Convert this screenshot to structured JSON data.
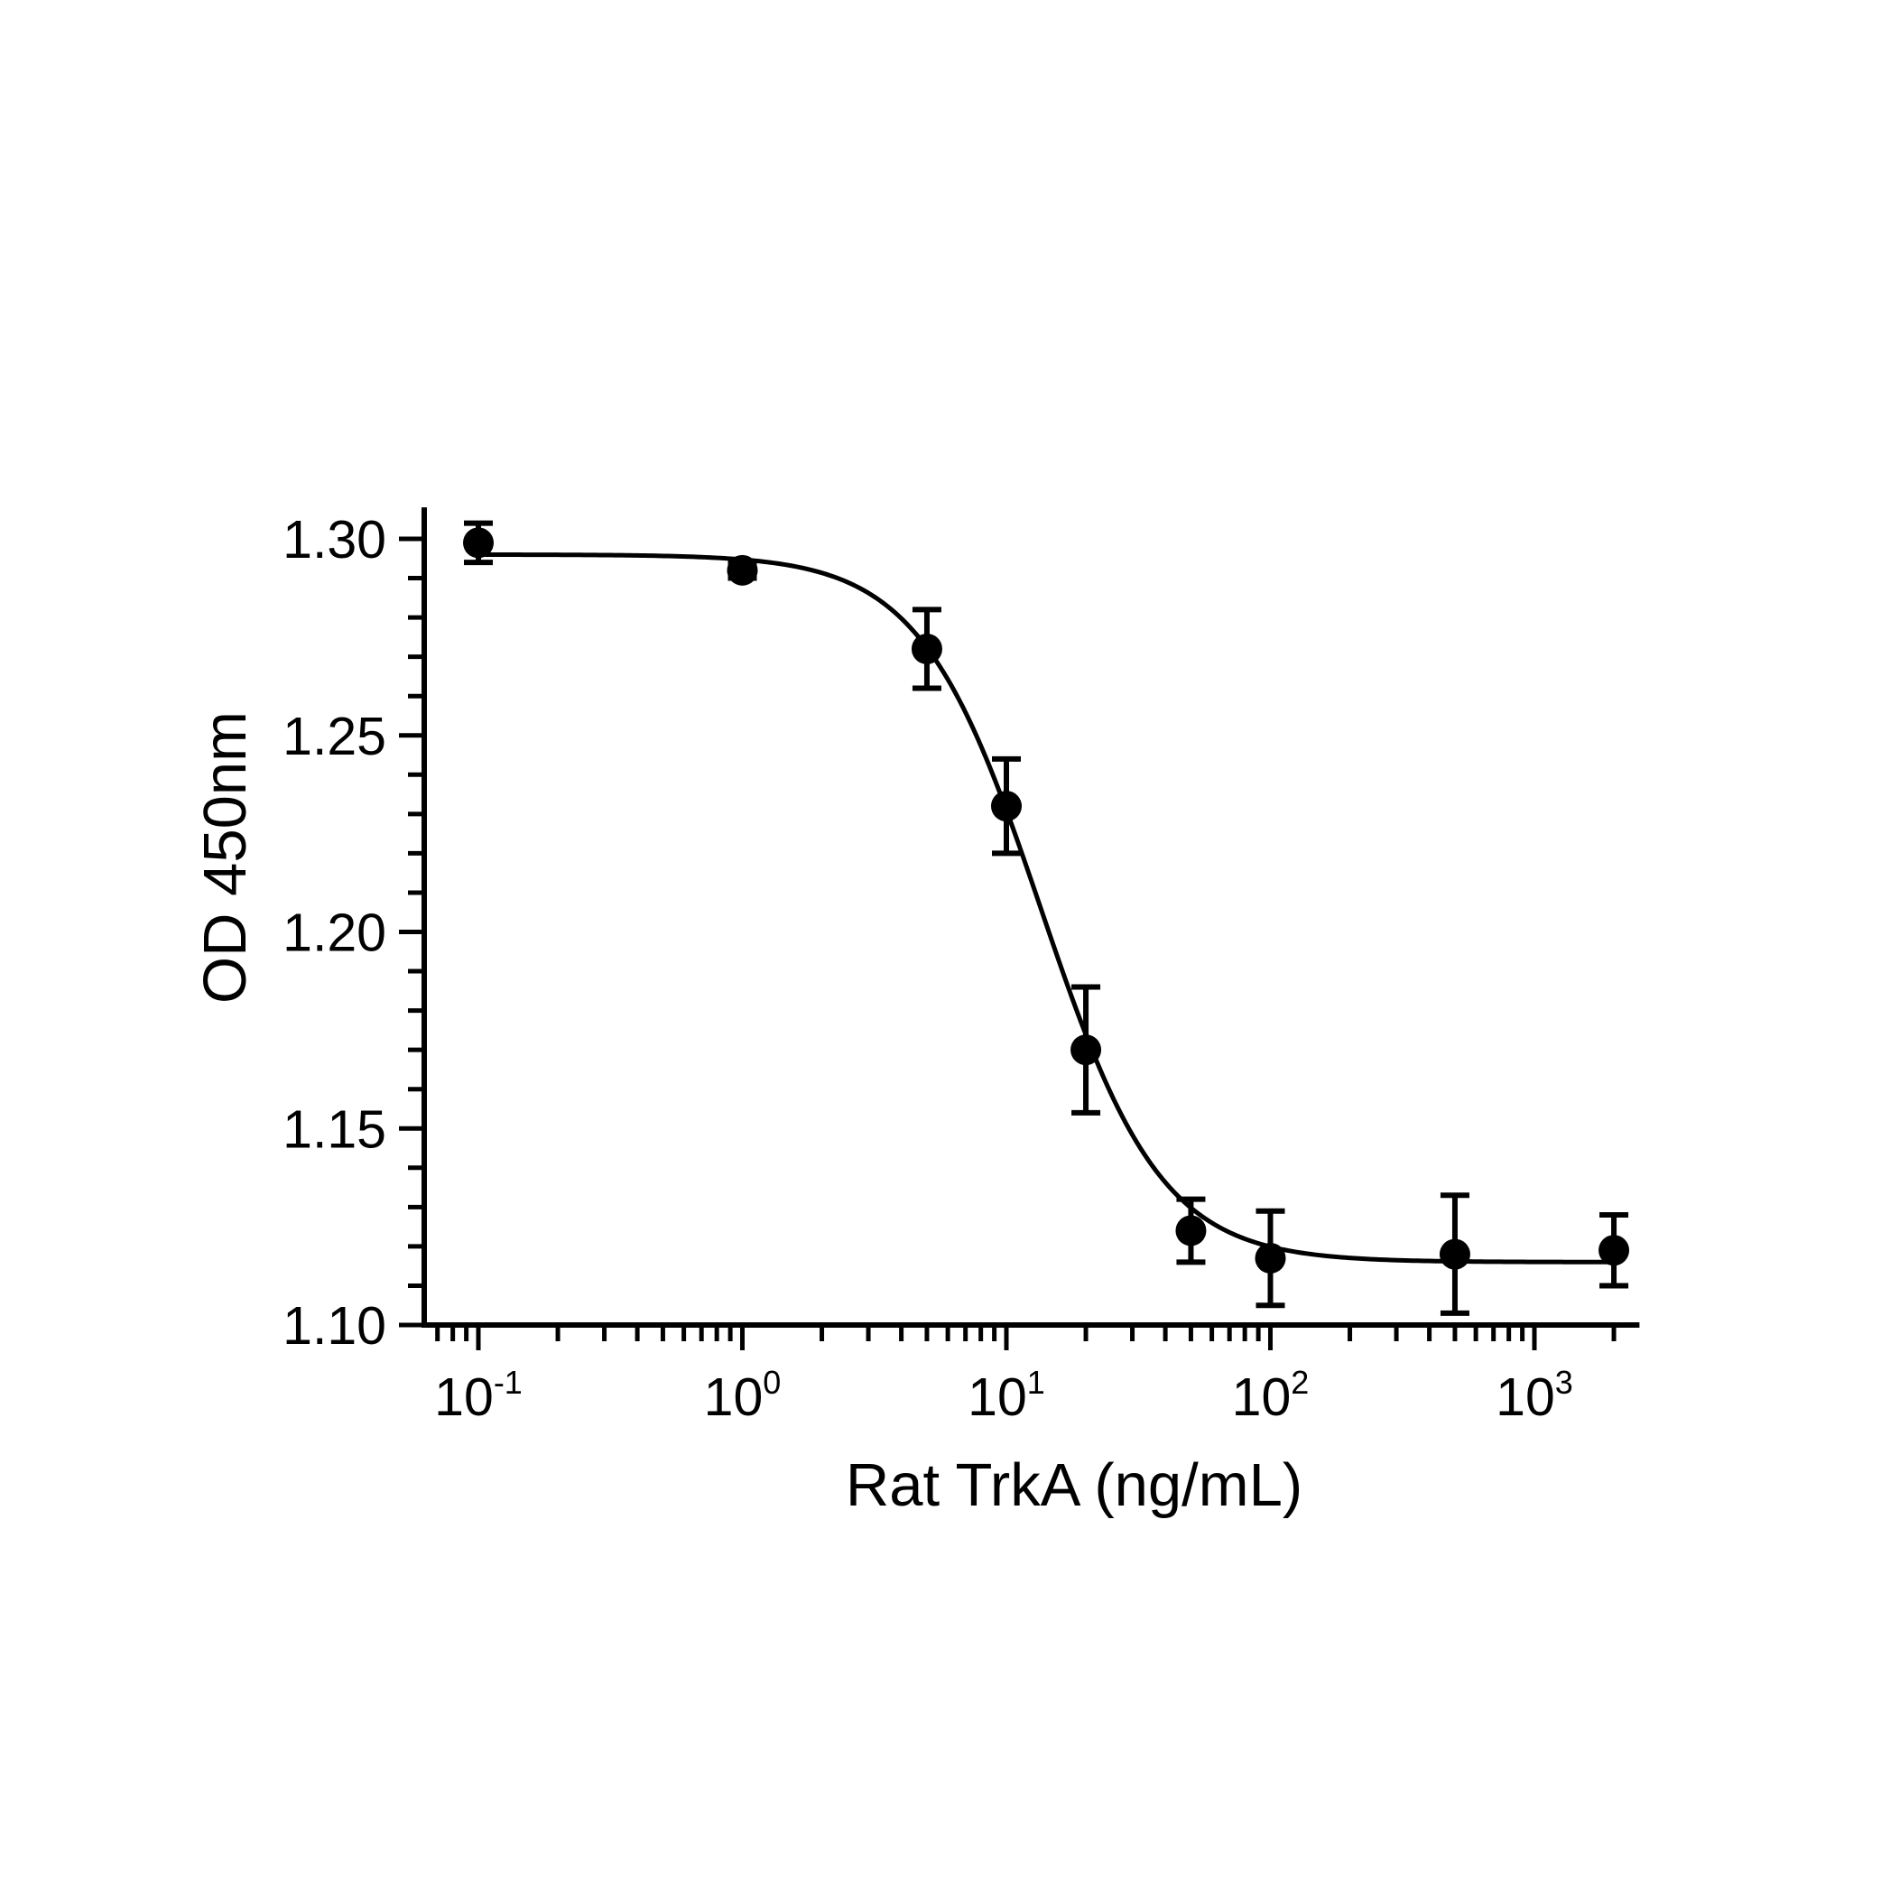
{
  "chart_data": {
    "type": "scatter",
    "xlabel": "Rat TrkA (ng/mL)",
    "ylabel": "OD 450nm",
    "x_scale": "log",
    "xlim": [
      0.065,
      2500
    ],
    "ylim": [
      1.1,
      1.308
    ],
    "y_ticks": [
      "1.10",
      "1.15",
      "1.20",
      "1.25",
      "1.30"
    ],
    "x_ticks": [
      {
        "base": "10",
        "exp": "-1"
      },
      {
        "base": "10",
        "exp": "0"
      },
      {
        "base": "10",
        "exp": "1"
      },
      {
        "base": "10",
        "exp": "2"
      },
      {
        "base": "10",
        "exp": "3"
      }
    ],
    "grid": false,
    "series": [
      {
        "x": [
          0.1,
          1,
          5,
          10,
          20,
          50,
          100,
          500,
          2000
        ],
        "y": [
          1.299,
          1.292,
          1.272,
          1.232,
          1.17,
          1.124,
          1.117,
          1.118,
          1.119
        ],
        "error": [
          0.005,
          0.002,
          0.01,
          0.012,
          0.016,
          0.008,
          0.012,
          0.015,
          0.009
        ]
      }
    ],
    "fit": {
      "model": "4PL",
      "top": 1.296,
      "bottom": 1.116,
      "ec50": 13.5,
      "hill": 1.9
    },
    "color": "#000000"
  }
}
